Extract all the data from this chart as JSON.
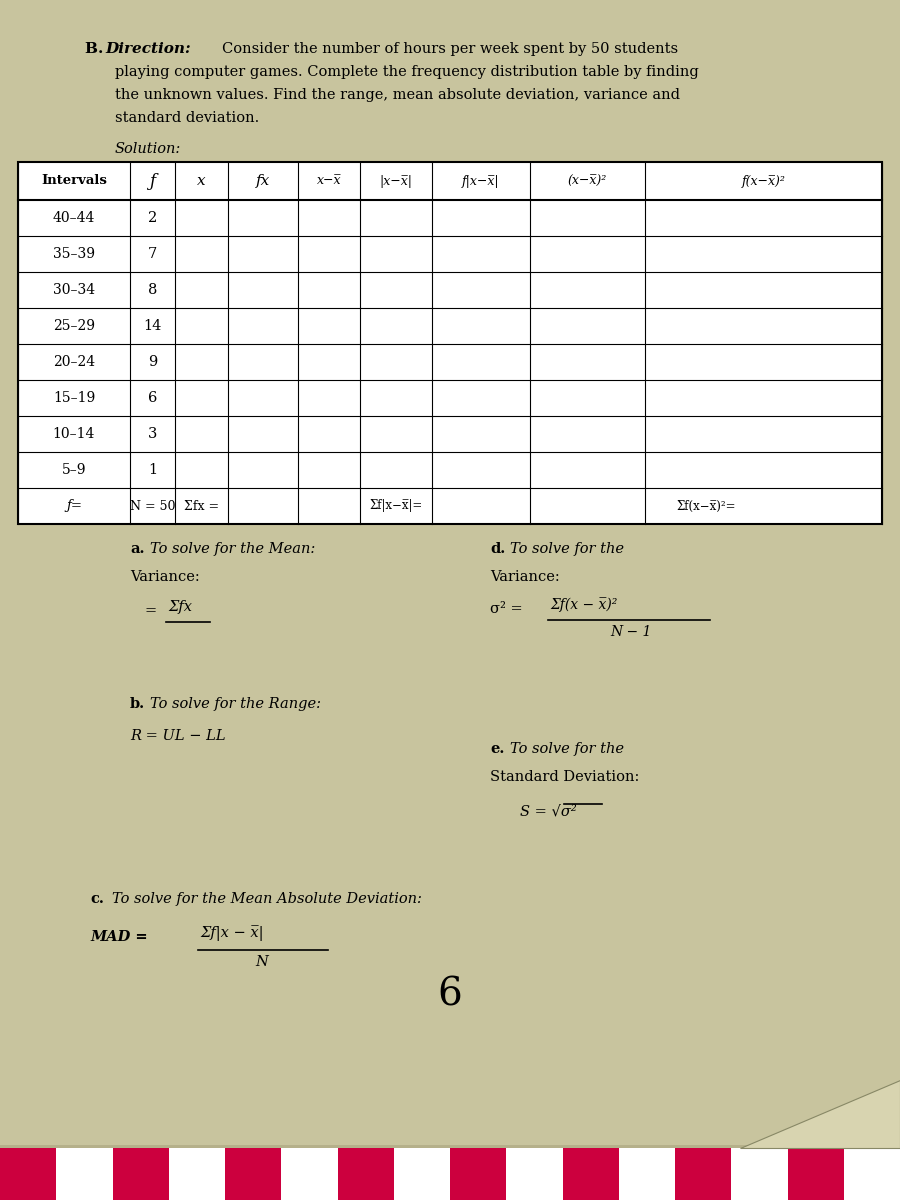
{
  "bg_color": "#b5b08a",
  "paper_color": "#c8c49e",
  "intervals": [
    "40–44",
    "35–39",
    "30–34",
    "25–29",
    "20–24",
    "15–19",
    "10–14",
    "5–9"
  ],
  "f_values": [
    "2",
    "7",
    "8",
    "14",
    "9",
    "6",
    "3",
    "1"
  ],
  "page_number": "6"
}
